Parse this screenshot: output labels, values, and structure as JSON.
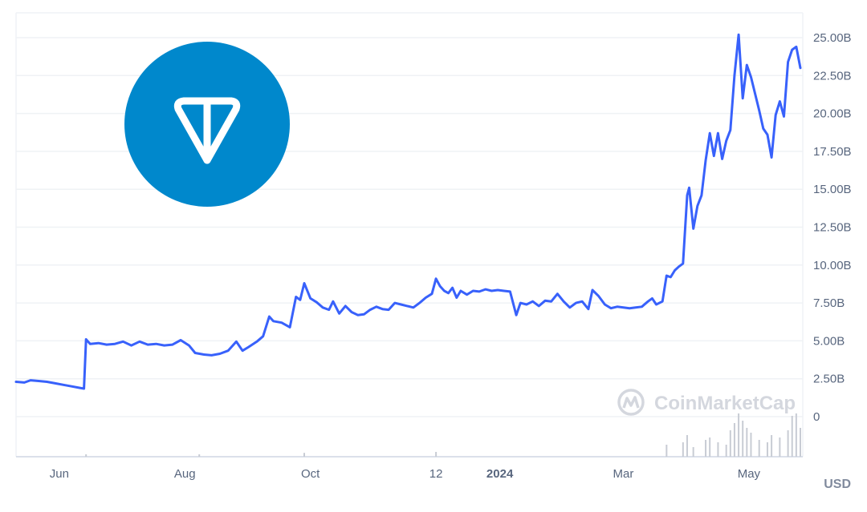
{
  "chart_data": {
    "type": "line",
    "title": "",
    "ylabel": "",
    "unit_label": "USD",
    "ylim": [
      -2000000000,
      26000000000
    ],
    "y_ticks": [
      "0",
      "2.50B",
      "5.00B",
      "7.50B",
      "10.00B",
      "12.50B",
      "15.00B",
      "17.50B",
      "20.00B",
      "22.50B",
      "25.00B"
    ],
    "y_tick_values": [
      0,
      2500000000,
      5000000000,
      7500000000,
      10000000000,
      12500000000,
      15000000000,
      17500000000,
      20000000000,
      22500000000,
      25000000000
    ],
    "x_ticks": [
      {
        "label": "Jun",
        "date": "2023-06-01",
        "bold": false
      },
      {
        "label": "Aug",
        "date": "2023-08-01",
        "bold": false
      },
      {
        "label": "Oct",
        "date": "2023-10-01",
        "bold": false
      },
      {
        "label": "12",
        "date": "2023-12-01",
        "bold": false
      },
      {
        "label": "2024",
        "date": "2024-01-01",
        "bold": true
      },
      {
        "label": "Mar",
        "date": "2024-03-01",
        "bold": false
      },
      {
        "label": "May",
        "date": "2024-05-01",
        "bold": false
      }
    ],
    "grid": true,
    "series": [
      {
        "color": "#3861fb",
        "points": [
          [
            "2023-05-11",
            2.3
          ],
          [
            "2023-05-15",
            2.25
          ],
          [
            "2023-05-18",
            2.4
          ],
          [
            "2023-05-22",
            2.35
          ],
          [
            "2023-05-26",
            2.3
          ],
          [
            "2023-05-30",
            2.2
          ],
          [
            "2023-06-03",
            2.1
          ],
          [
            "2023-06-07",
            2.0
          ],
          [
            "2023-06-11",
            1.9
          ],
          [
            "2023-06-13",
            1.85
          ],
          [
            "2023-06-14",
            5.1
          ],
          [
            "2023-06-16",
            4.8
          ],
          [
            "2023-06-20",
            4.85
          ],
          [
            "2023-06-24",
            4.75
          ],
          [
            "2023-06-28",
            4.8
          ],
          [
            "2023-07-02",
            4.95
          ],
          [
            "2023-07-06",
            4.7
          ],
          [
            "2023-07-10",
            4.95
          ],
          [
            "2023-07-14",
            4.75
          ],
          [
            "2023-07-18",
            4.8
          ],
          [
            "2023-07-22",
            4.7
          ],
          [
            "2023-07-26",
            4.75
          ],
          [
            "2023-07-30",
            5.05
          ],
          [
            "2023-08-03",
            4.7
          ],
          [
            "2023-08-06",
            4.2
          ],
          [
            "2023-08-10",
            4.1
          ],
          [
            "2023-08-14",
            4.05
          ],
          [
            "2023-08-18",
            4.15
          ],
          [
            "2023-08-22",
            4.35
          ],
          [
            "2023-08-26",
            4.95
          ],
          [
            "2023-08-29",
            4.35
          ],
          [
            "2023-09-01",
            4.6
          ],
          [
            "2023-09-05",
            4.95
          ],
          [
            "2023-09-08",
            5.3
          ],
          [
            "2023-09-11",
            6.6
          ],
          [
            "2023-09-13",
            6.3
          ],
          [
            "2023-09-17",
            6.2
          ],
          [
            "2023-09-21",
            5.9
          ],
          [
            "2023-09-24",
            7.9
          ],
          [
            "2023-09-26",
            7.7
          ],
          [
            "2023-09-28",
            8.8
          ],
          [
            "2023-10-01",
            7.8
          ],
          [
            "2023-10-04",
            7.55
          ],
          [
            "2023-10-07",
            7.2
          ],
          [
            "2023-10-10",
            7.05
          ],
          [
            "2023-10-12",
            7.6
          ],
          [
            "2023-10-15",
            6.8
          ],
          [
            "2023-10-18",
            7.3
          ],
          [
            "2023-10-21",
            6.9
          ],
          [
            "2023-10-24",
            6.7
          ],
          [
            "2023-10-27",
            6.75
          ],
          [
            "2023-10-30",
            7.05
          ],
          [
            "2023-11-02",
            7.25
          ],
          [
            "2023-11-05",
            7.1
          ],
          [
            "2023-11-08",
            7.05
          ],
          [
            "2023-11-11",
            7.5
          ],
          [
            "2023-11-14",
            7.4
          ],
          [
            "2023-11-17",
            7.3
          ],
          [
            "2023-11-20",
            7.2
          ],
          [
            "2023-11-23",
            7.5
          ],
          [
            "2023-11-26",
            7.85
          ],
          [
            "2023-11-29",
            8.1
          ],
          [
            "2023-12-01",
            9.1
          ],
          [
            "2023-12-03",
            8.6
          ],
          [
            "2023-12-05",
            8.3
          ],
          [
            "2023-12-07",
            8.15
          ],
          [
            "2023-12-09",
            8.5
          ],
          [
            "2023-12-11",
            7.85
          ],
          [
            "2023-12-13",
            8.3
          ],
          [
            "2023-12-16",
            8.05
          ],
          [
            "2023-12-19",
            8.3
          ],
          [
            "2023-12-22",
            8.25
          ],
          [
            "2023-12-25",
            8.4
          ],
          [
            "2023-12-28",
            8.3
          ],
          [
            "2023-12-31",
            8.35
          ],
          [
            "2024-01-03",
            8.3
          ],
          [
            "2024-01-06",
            8.25
          ],
          [
            "2024-01-09",
            6.7
          ],
          [
            "2024-01-11",
            7.5
          ],
          [
            "2024-01-14",
            7.4
          ],
          [
            "2024-01-17",
            7.6
          ],
          [
            "2024-01-20",
            7.3
          ],
          [
            "2024-01-23",
            7.65
          ],
          [
            "2024-01-26",
            7.6
          ],
          [
            "2024-01-29",
            8.1
          ],
          [
            "2024-02-01",
            7.6
          ],
          [
            "2024-02-04",
            7.2
          ],
          [
            "2024-02-07",
            7.5
          ],
          [
            "2024-02-10",
            7.6
          ],
          [
            "2024-02-13",
            7.1
          ],
          [
            "2024-02-15",
            8.35
          ],
          [
            "2024-02-18",
            7.95
          ],
          [
            "2024-02-21",
            7.4
          ],
          [
            "2024-02-24",
            7.15
          ],
          [
            "2024-02-27",
            7.25
          ],
          [
            "2024-03-01",
            7.2
          ],
          [
            "2024-03-04",
            7.15
          ],
          [
            "2024-03-07",
            7.2
          ],
          [
            "2024-03-10",
            7.25
          ],
          [
            "2024-03-13",
            7.6
          ],
          [
            "2024-03-15",
            7.8
          ],
          [
            "2024-03-17",
            7.4
          ],
          [
            "2024-03-20",
            7.6
          ],
          [
            "2024-03-22",
            9.3
          ],
          [
            "2024-03-24",
            9.2
          ],
          [
            "2024-03-26",
            9.65
          ],
          [
            "2024-03-28",
            9.9
          ],
          [
            "2024-03-30",
            10.1
          ],
          [
            "2024-04-01",
            14.6
          ],
          [
            "2024-04-02",
            15.1
          ],
          [
            "2024-04-04",
            12.4
          ],
          [
            "2024-04-06",
            13.9
          ],
          [
            "2024-04-08",
            14.6
          ],
          [
            "2024-04-10",
            16.9
          ],
          [
            "2024-04-12",
            18.7
          ],
          [
            "2024-04-14",
            17.2
          ],
          [
            "2024-04-16",
            18.7
          ],
          [
            "2024-04-18",
            17.0
          ],
          [
            "2024-04-20",
            18.2
          ],
          [
            "2024-04-22",
            18.9
          ],
          [
            "2024-04-24",
            22.5
          ],
          [
            "2024-04-26",
            25.2
          ],
          [
            "2024-04-28",
            21.0
          ],
          [
            "2024-04-30",
            23.2
          ],
          [
            "2024-05-02",
            22.4
          ],
          [
            "2024-05-04",
            21.3
          ],
          [
            "2024-05-06",
            20.2
          ],
          [
            "2024-05-08",
            19.0
          ],
          [
            "2024-05-10",
            18.6
          ],
          [
            "2024-05-12",
            17.1
          ],
          [
            "2024-05-14",
            19.9
          ],
          [
            "2024-05-16",
            20.8
          ],
          [
            "2024-05-18",
            19.8
          ],
          [
            "2024-05-20",
            23.4
          ],
          [
            "2024-05-22",
            24.2
          ],
          [
            "2024-05-24",
            24.4
          ],
          [
            "2024-05-26",
            23.0
          ]
        ]
      }
    ],
    "volume": {
      "color": "#c8ccd4",
      "description_values": "relative bar heights (0-1) by date",
      "points": [
        [
          "2023-06-14",
          0.05
        ],
        [
          "2023-08-08",
          0.05
        ],
        [
          "2023-09-28",
          0.08
        ],
        [
          "2023-12-01",
          0.1
        ],
        [
          "2024-03-22",
          0.25
        ],
        [
          "2024-03-30",
          0.3
        ],
        [
          "2024-04-01",
          0.45
        ],
        [
          "2024-04-04",
          0.2
        ],
        [
          "2024-04-10",
          0.35
        ],
        [
          "2024-04-12",
          0.4
        ],
        [
          "2024-04-16",
          0.3
        ],
        [
          "2024-04-20",
          0.25
        ],
        [
          "2024-04-22",
          0.55
        ],
        [
          "2024-04-24",
          0.7
        ],
        [
          "2024-04-26",
          0.9
        ],
        [
          "2024-04-28",
          0.75
        ],
        [
          "2024-04-30",
          0.6
        ],
        [
          "2024-05-02",
          0.5
        ],
        [
          "2024-05-06",
          0.35
        ],
        [
          "2024-05-10",
          0.3
        ],
        [
          "2024-05-12",
          0.45
        ],
        [
          "2024-05-16",
          0.4
        ],
        [
          "2024-05-20",
          0.55
        ],
        [
          "2024-05-22",
          0.85
        ],
        [
          "2024-05-24",
          0.9
        ],
        [
          "2024-05-26",
          0.6
        ]
      ]
    }
  },
  "watermark": {
    "brand_text": "CoinMarketCap"
  },
  "logo": {
    "name": "ton-logo",
    "bg_color": "#0088cc",
    "fg_color": "#ffffff"
  }
}
